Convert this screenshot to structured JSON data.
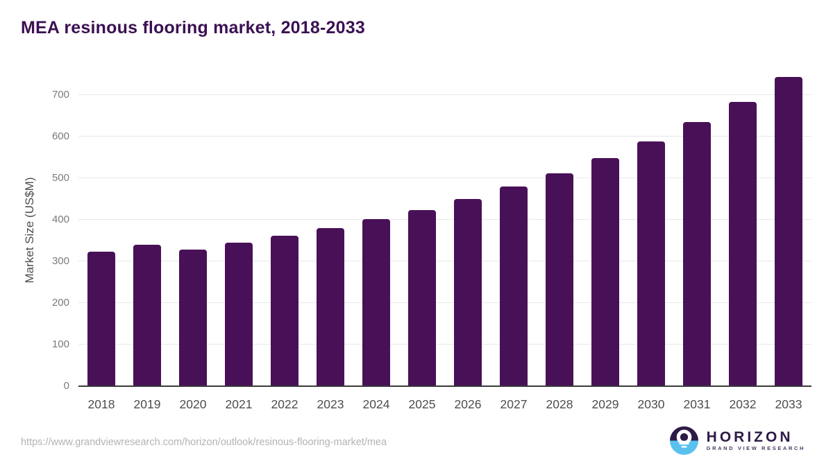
{
  "chart_data": {
    "type": "bar",
    "title": "MEA resinous flooring market, 2018-2033",
    "categories": [
      "2018",
      "2019",
      "2020",
      "2021",
      "2022",
      "2023",
      "2024",
      "2025",
      "2026",
      "2027",
      "2028",
      "2029",
      "2030",
      "2031",
      "2032",
      "2033"
    ],
    "values": [
      323,
      340,
      328,
      345,
      362,
      380,
      402,
      424,
      450,
      480,
      511,
      548,
      588,
      635,
      684,
      744
    ],
    "xlabel": "",
    "ylabel": "Market Size (US$M)",
    "yticks": [
      0,
      100,
      200,
      300,
      400,
      500,
      600,
      700
    ],
    "ylim": [
      0,
      760
    ],
    "grid": true,
    "legend": "none",
    "bar_color": "#481157"
  },
  "colors": {
    "title": "#3b1053",
    "bar": "#481157",
    "gridline": "#e8e8e8",
    "axis_line": "#3a3a3a",
    "ytick_label": "#7a7a7a",
    "xtick_label": "#4d4d4d",
    "url_text": "#b3b3b3",
    "logo_purple": "#2e1a47",
    "logo_blue": "#5ac1ef"
  },
  "footer": {
    "url": "https://www.grandviewresearch.com/horizon/outlook/resinous-flooring-market/mea"
  },
  "logo": {
    "name": "HORIZON",
    "subtitle": "GRAND VIEW RESEARCH"
  }
}
